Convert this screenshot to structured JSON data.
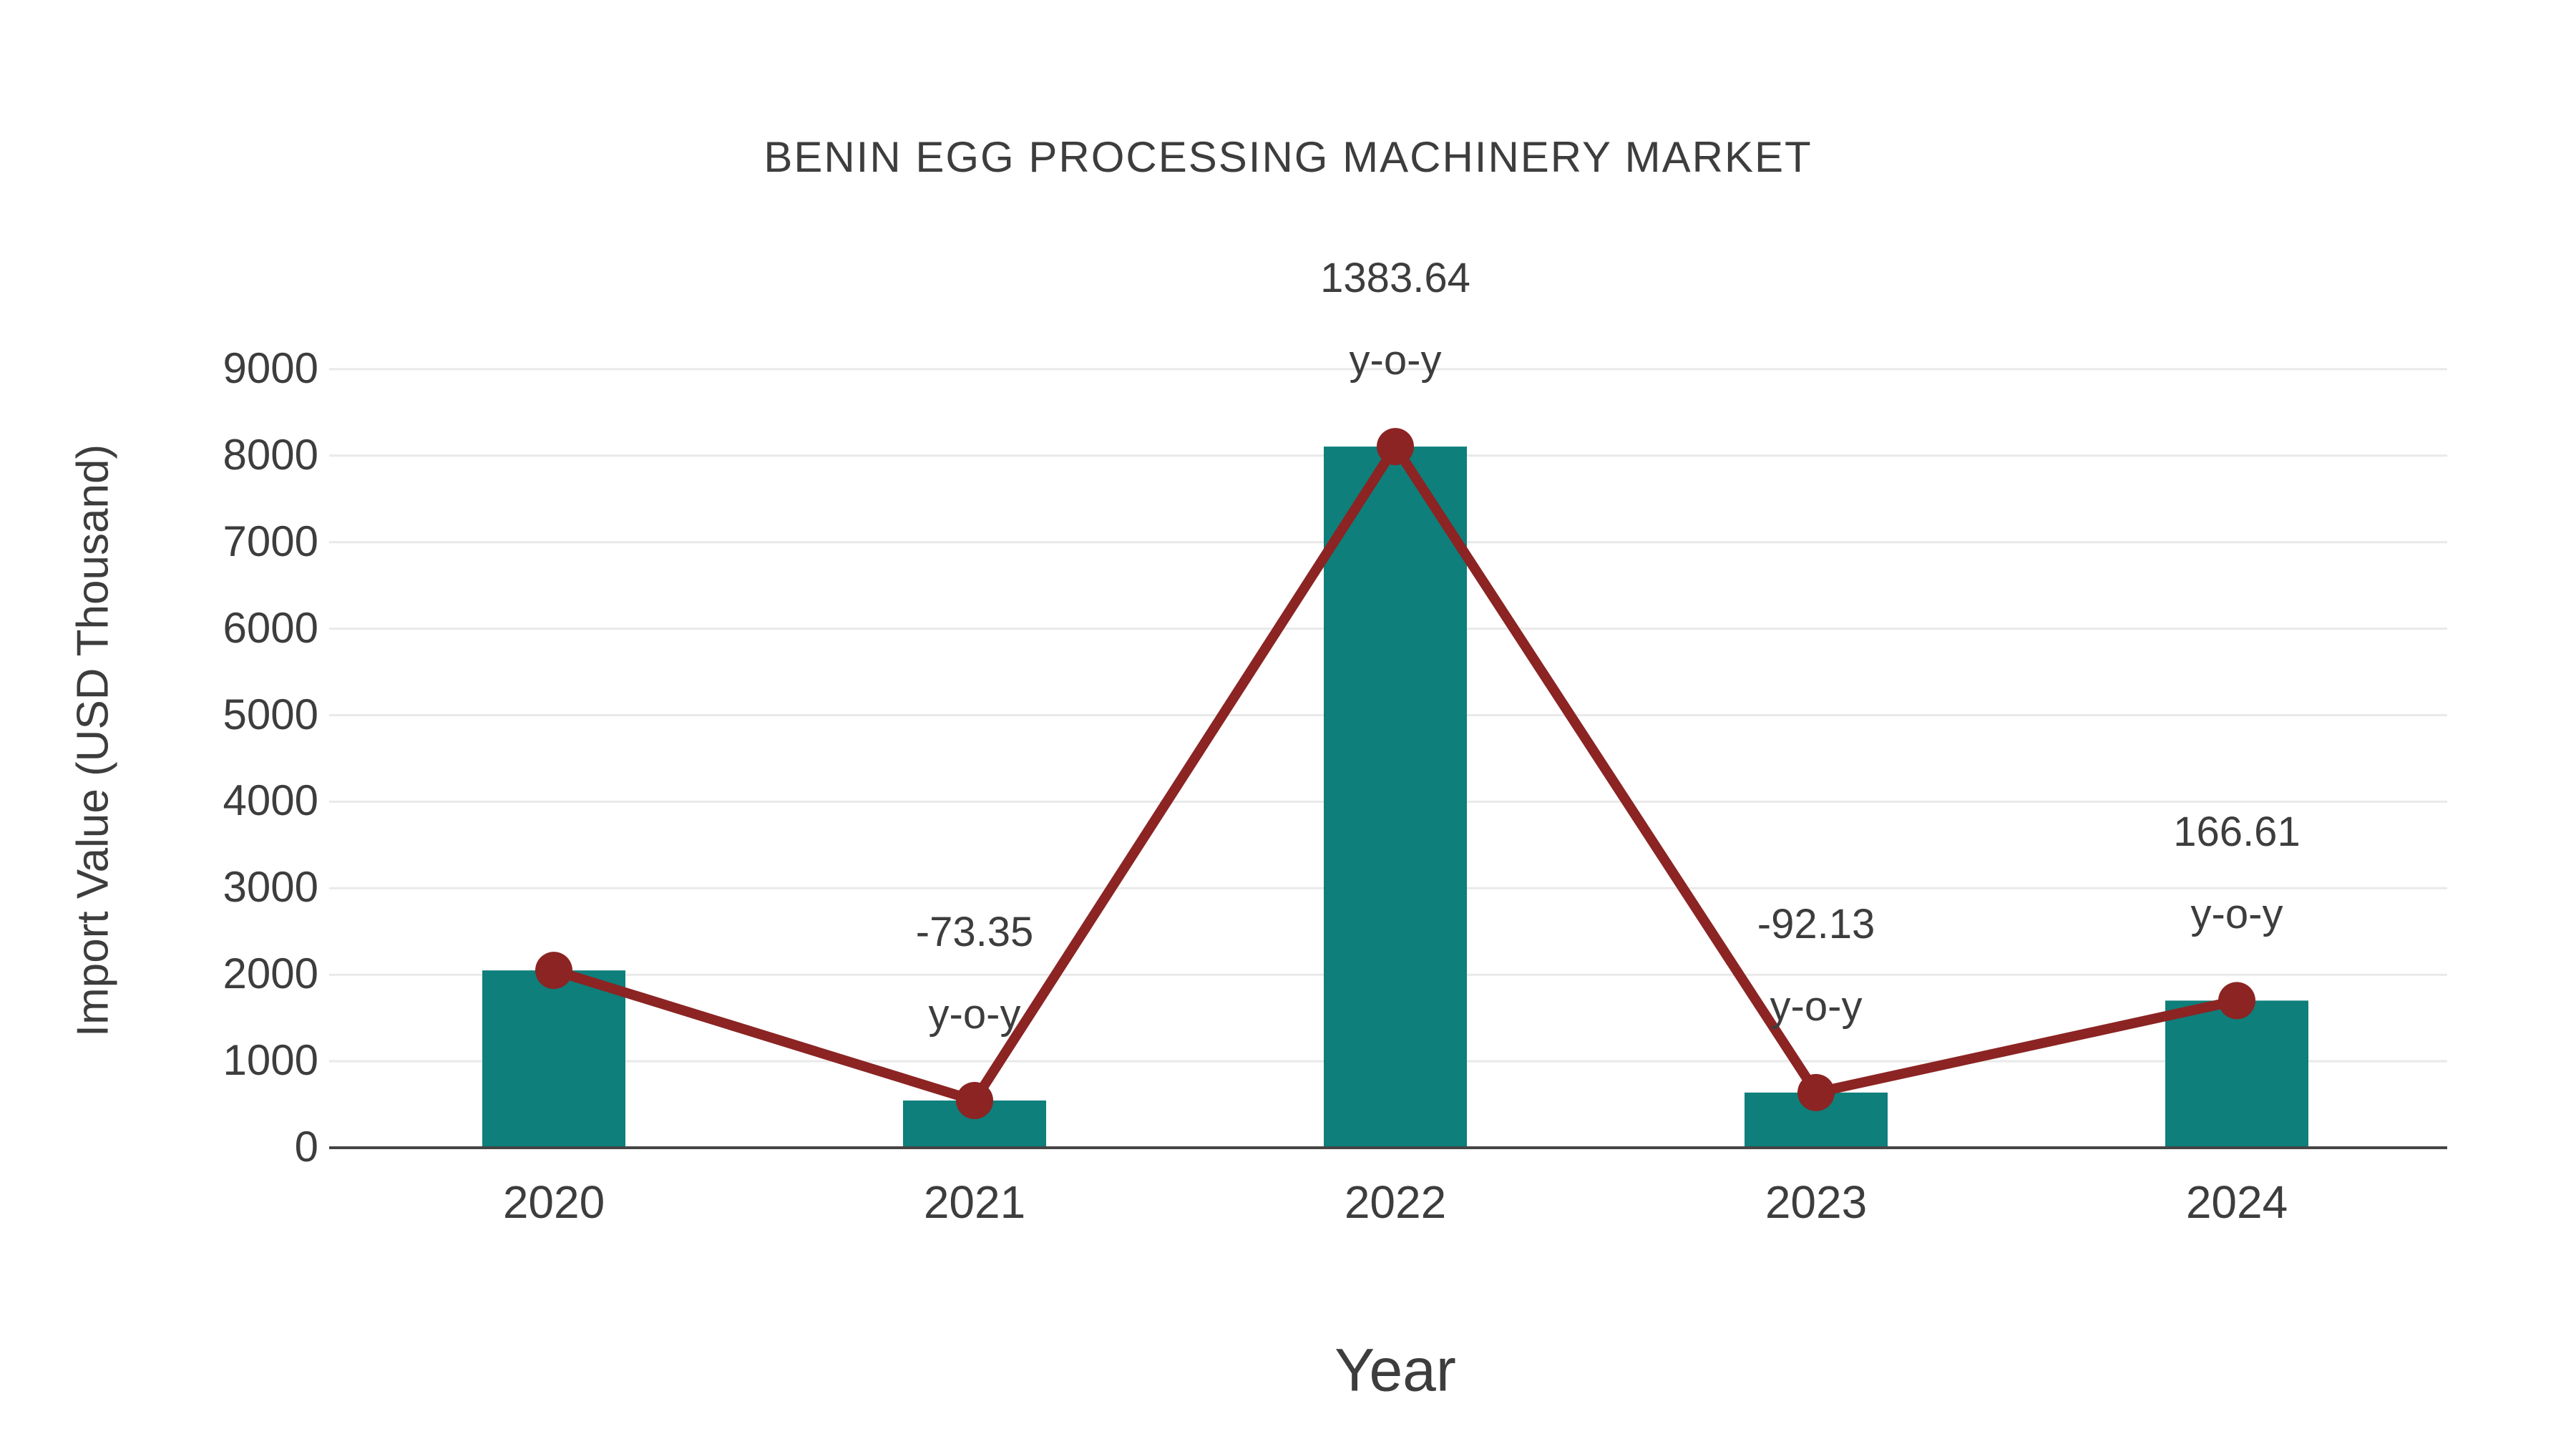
{
  "title": "BENIN EGG PROCESSING MACHINERY MARKET",
  "axes": {
    "x_label": "Year",
    "y_label": "Import Value (USD Thousand)",
    "y_tick_labels": [
      "0",
      "1000",
      "2000",
      "3000",
      "4000",
      "5000",
      "6000",
      "7000",
      "8000",
      "9000"
    ],
    "x_tick_labels": [
      "2020",
      "2021",
      "2022",
      "2023",
      "2024"
    ]
  },
  "colors": {
    "bar": "#0e7f7b",
    "line": "#8b2423",
    "grid": "#e9e9e9",
    "axis_line": "#454545",
    "text": "#3d3d3d"
  },
  "chart_data": {
    "type": "bar",
    "title": "BENIN EGG PROCESSING MACHINERY MARKET",
    "xlabel": "Year",
    "ylabel": "Import Value (USD Thousand)",
    "categories": [
      "2020",
      "2021",
      "2022",
      "2023",
      "2024"
    ],
    "series": [
      {
        "name": "Import Value (USD Thousand)",
        "type": "bar",
        "values": [
          2050,
          546,
          8105,
          638,
          1701
        ]
      },
      {
        "name": "y-o-y growth (%)",
        "type": "line",
        "values": [
          null,
          -73.35,
          1383.64,
          -92.13,
          166.61
        ],
        "note": "line markers plotted at bar-top import values"
      }
    ],
    "annotations": [
      {
        "category": "2021",
        "value_text": "-73.35",
        "suffix_text": "y-o-y"
      },
      {
        "category": "2022",
        "value_text": "1383.64",
        "suffix_text": "y-o-y"
      },
      {
        "category": "2023",
        "value_text": "-92.13",
        "suffix_text": "y-o-y"
      },
      {
        "category": "2024",
        "value_text": "166.61",
        "suffix_text": "y-o-y"
      }
    ],
    "ylim": [
      0,
      9700
    ],
    "y_tick_step": 1000,
    "grid": "horizontal",
    "legend": "none"
  }
}
